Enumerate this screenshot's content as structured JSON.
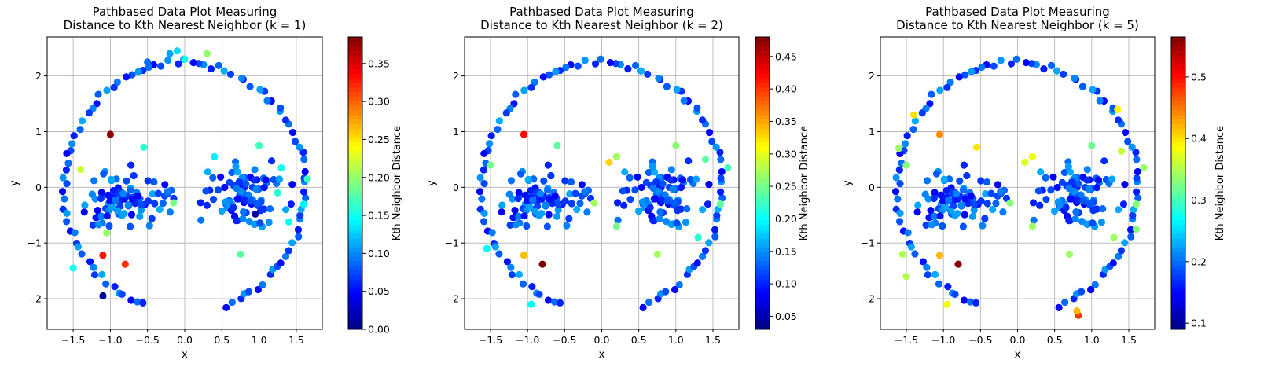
{
  "chart_data": [
    {
      "type": "scatter",
      "title": "Pathbased Data Plot Measuring\nDistance to Kth Nearest Neighbor (k = 1)",
      "xlabel": "x",
      "ylabel": "y",
      "xlim": [
        -1.85,
        1.85
      ],
      "ylim": [
        -2.55,
        2.7
      ],
      "xticks": [
        -1.5,
        -1.0,
        -0.5,
        0.0,
        0.5,
        1.0,
        1.5
      ],
      "xtick_labels": [
        "−1.5",
        "−1.0",
        "−0.5",
        "0.0",
        "0.5",
        "1.0",
        "1.5"
      ],
      "yticks": [
        -2,
        -1,
        0,
        1,
        2
      ],
      "ytick_labels": [
        "−2",
        "−1",
        "0",
        "1",
        "2"
      ],
      "grid": true,
      "colormap": "jet",
      "colorbar": {
        "label": "Kth Neighbor Distance",
        "range": [
          0.0,
          0.385
        ],
        "ticks": [
          0.0,
          0.05,
          0.1,
          0.15,
          0.2,
          0.25,
          0.3,
          0.35
        ],
        "tick_labels": [
          "0.00",
          "0.05",
          "0.10",
          "0.15",
          "0.20",
          "0.25",
          "0.30",
          "0.35"
        ]
      },
      "points": [
        [
          -1.0,
          0.95,
          0.38
        ],
        [
          -1.1,
          -1.22,
          0.33
        ],
        [
          -0.8,
          -1.38,
          0.32
        ],
        [
          -1.1,
          -1.95,
          0.01
        ],
        [
          0.95,
          -0.48,
          0.01
        ],
        [
          -1.4,
          0.32,
          0.22
        ],
        [
          -1.05,
          -0.82,
          0.2
        ],
        [
          -0.15,
          -0.28,
          0.19
        ],
        [
          0.75,
          -1.2,
          0.18
        ],
        [
          1.0,
          0.75,
          0.17
        ],
        [
          1.25,
          -0.1,
          0.16
        ],
        [
          1.4,
          -0.62,
          0.15
        ],
        [
          1.65,
          0.15,
          0.17
        ],
        [
          1.3,
          0.35,
          0.15
        ],
        [
          1.6,
          -0.3,
          0.14
        ],
        [
          -1.5,
          -1.45,
          0.15
        ],
        [
          -0.55,
          0.72,
          0.16
        ],
        [
          0.4,
          0.55,
          0.14
        ],
        [
          0.3,
          2.4,
          0.2
        ],
        [
          0.0,
          2.3,
          0.15
        ],
        [
          -0.1,
          2.45,
          0.13
        ],
        [
          -0.2,
          2.4,
          0.11
        ],
        [
          -0.5,
          2.25,
          0.09
        ]
      ]
    },
    {
      "type": "scatter",
      "title": "Pathbased Data Plot Measuring\nDistance to Kth Nearest Neighbor (k = 2)",
      "xlabel": "x",
      "ylabel": "y",
      "xlim": [
        -1.85,
        1.85
      ],
      "ylim": [
        -2.55,
        2.7
      ],
      "xticks": [
        -1.5,
        -1.0,
        -0.5,
        0.0,
        0.5,
        1.0,
        1.5
      ],
      "xtick_labels": [
        "−1.5",
        "−1.0",
        "−0.5",
        "0.0",
        "0.5",
        "1.0",
        "1.5"
      ],
      "yticks": [
        -2,
        -1,
        0,
        1,
        2
      ],
      "ytick_labels": [
        "−2",
        "−1",
        "0",
        "1",
        "2"
      ],
      "grid": true,
      "colormap": "jet",
      "colorbar": {
        "label": "Kth Neighbor Distance",
        "range": [
          0.03,
          0.48
        ],
        "ticks": [
          0.05,
          0.1,
          0.15,
          0.2,
          0.25,
          0.3,
          0.35,
          0.4,
          0.45
        ],
        "tick_labels": [
          "0.05",
          "0.10",
          "0.15",
          "0.20",
          "0.25",
          "0.30",
          "0.35",
          "0.40",
          "0.45"
        ]
      },
      "points": [
        [
          -0.8,
          -1.38,
          0.48
        ],
        [
          -1.05,
          0.95,
          0.42
        ],
        [
          -1.05,
          -1.22,
          0.34
        ],
        [
          0.1,
          0.45,
          0.33
        ],
        [
          0.2,
          0.55,
          0.27
        ],
        [
          -0.1,
          -0.28,
          0.27
        ],
        [
          0.75,
          -1.2,
          0.27
        ],
        [
          1.0,
          0.75,
          0.26
        ],
        [
          -1.5,
          0.4,
          0.25
        ],
        [
          -0.6,
          0.75,
          0.24
        ],
        [
          1.6,
          -0.3,
          0.24
        ],
        [
          1.4,
          0.5,
          0.24
        ],
        [
          0.2,
          -0.7,
          0.25
        ],
        [
          1.3,
          -0.9,
          0.22
        ],
        [
          -1.55,
          -1.1,
          0.2
        ],
        [
          -0.95,
          -2.1,
          0.2
        ],
        [
          1.7,
          0.35,
          0.23
        ]
      ]
    },
    {
      "type": "scatter",
      "title": "Pathbased Data Plot Measuring\nDistance to Kth Nearest Neighbor (k = 5)",
      "xlabel": "x",
      "ylabel": "y",
      "xlim": [
        -1.85,
        1.85
      ],
      "ylim": [
        -2.55,
        2.7
      ],
      "xticks": [
        -1.5,
        -1.0,
        -0.5,
        0.0,
        0.5,
        1.0,
        1.5
      ],
      "xtick_labels": [
        "−1.5",
        "−1.0",
        "−0.5",
        "0.0",
        "0.5",
        "1.0",
        "1.5"
      ],
      "yticks": [
        -2,
        -1,
        0,
        1,
        2
      ],
      "ytick_labels": [
        "−2",
        "−1",
        "0",
        "1",
        "2"
      ],
      "grid": true,
      "colormap": "jet",
      "colorbar": {
        "label": "Kth Neighbor Distance",
        "range": [
          0.09,
          0.565
        ],
        "ticks": [
          0.1,
          0.2,
          0.3,
          0.4,
          0.5
        ],
        "tick_labels": [
          "0.1",
          "0.2",
          "0.3",
          "0.4",
          "0.5"
        ]
      },
      "points": [
        [
          -0.8,
          -1.38,
          0.56
        ],
        [
          0.82,
          -2.3,
          0.48
        ],
        [
          -1.05,
          0.95,
          0.44
        ],
        [
          0.8,
          -2.22,
          0.42
        ],
        [
          -1.05,
          -1.22,
          0.42
        ],
        [
          -0.55,
          0.72,
          0.4
        ],
        [
          -1.4,
          1.3,
          0.4
        ],
        [
          0.2,
          0.55,
          0.38
        ],
        [
          0.1,
          0.45,
          0.37
        ],
        [
          -0.95,
          -2.1,
          0.38
        ],
        [
          1.35,
          1.4,
          0.39
        ],
        [
          1.4,
          0.65,
          0.36
        ],
        [
          -1.55,
          -1.2,
          0.35
        ],
        [
          -1.5,
          -1.6,
          0.35
        ],
        [
          0.7,
          -1.2,
          0.34
        ],
        [
          1.3,
          -0.9,
          0.34
        ],
        [
          1.6,
          -0.75,
          0.33
        ],
        [
          0.2,
          -0.7,
          0.34
        ],
        [
          -0.1,
          -0.28,
          0.33
        ],
        [
          1.0,
          0.75,
          0.32
        ],
        [
          1.6,
          -0.3,
          0.33
        ],
        [
          1.7,
          0.35,
          0.34
        ],
        [
          -1.5,
          0.4,
          0.33
        ],
        [
          -1.6,
          0.7,
          0.34
        ]
      ]
    }
  ]
}
